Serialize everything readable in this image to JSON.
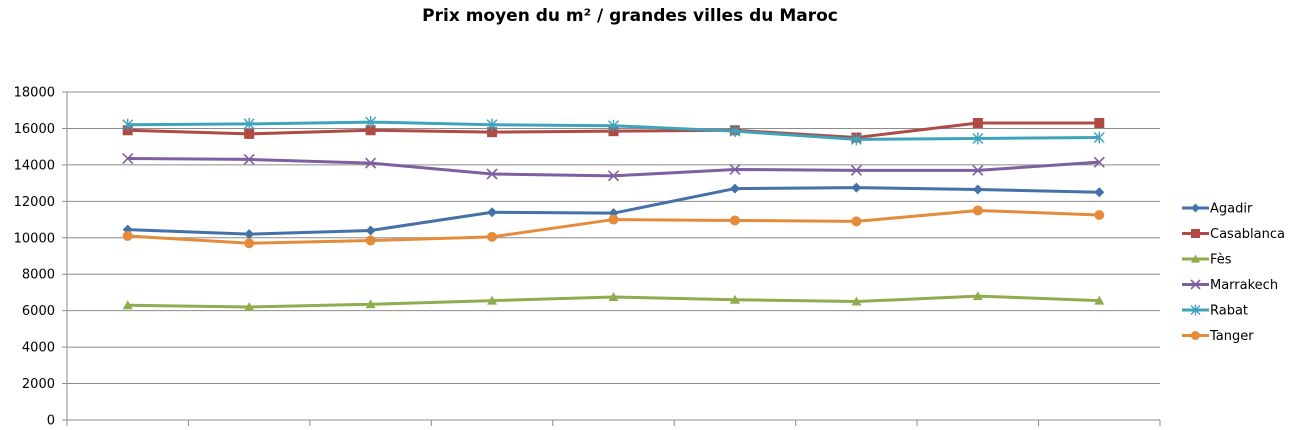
{
  "chart_data": {
    "type": "line",
    "title": "Prix moyen du m² / grandes villes du Maroc",
    "xlabel": "",
    "ylabel": "",
    "ylim": [
      0,
      18000
    ],
    "yticks": [
      0,
      2000,
      4000,
      6000,
      8000,
      10000,
      12000,
      14000,
      16000,
      18000
    ],
    "categories": [
      "",
      "",
      "",
      "",
      "",
      "",
      "",
      "",
      ""
    ],
    "grid": true,
    "legend_position": "right",
    "series": [
      {
        "name": "Agadir",
        "color": "#4472a8",
        "marker": "diamond",
        "values": [
          10450,
          10200,
          10400,
          11400,
          11350,
          12700,
          12750,
          12650,
          12500
        ]
      },
      {
        "name": "Casablanca",
        "color": "#b04a45",
        "marker": "square",
        "values": [
          15900,
          15700,
          15900,
          15800,
          15850,
          15900,
          15500,
          16300,
          16300
        ]
      },
      {
        "name": "Fès",
        "color": "#8fac4e",
        "marker": "triangle",
        "values": [
          6300,
          6200,
          6350,
          6550,
          6750,
          6600,
          6500,
          6800,
          6550
        ]
      },
      {
        "name": "Marrakech",
        "color": "#7e5fa0",
        "marker": "x",
        "values": [
          14350,
          14300,
          14100,
          13500,
          13400,
          13750,
          13700,
          13700,
          14150
        ]
      },
      {
        "name": "Rabat",
        "color": "#3ea3bb",
        "marker": "star",
        "values": [
          16200,
          16250,
          16350,
          16200,
          16150,
          15850,
          15400,
          15450,
          15500
        ]
      },
      {
        "name": "Tanger",
        "color": "#e48c3c",
        "marker": "circle",
        "values": [
          10100,
          9700,
          9850,
          10050,
          11000,
          10950,
          10900,
          11500,
          11250
        ]
      }
    ]
  }
}
